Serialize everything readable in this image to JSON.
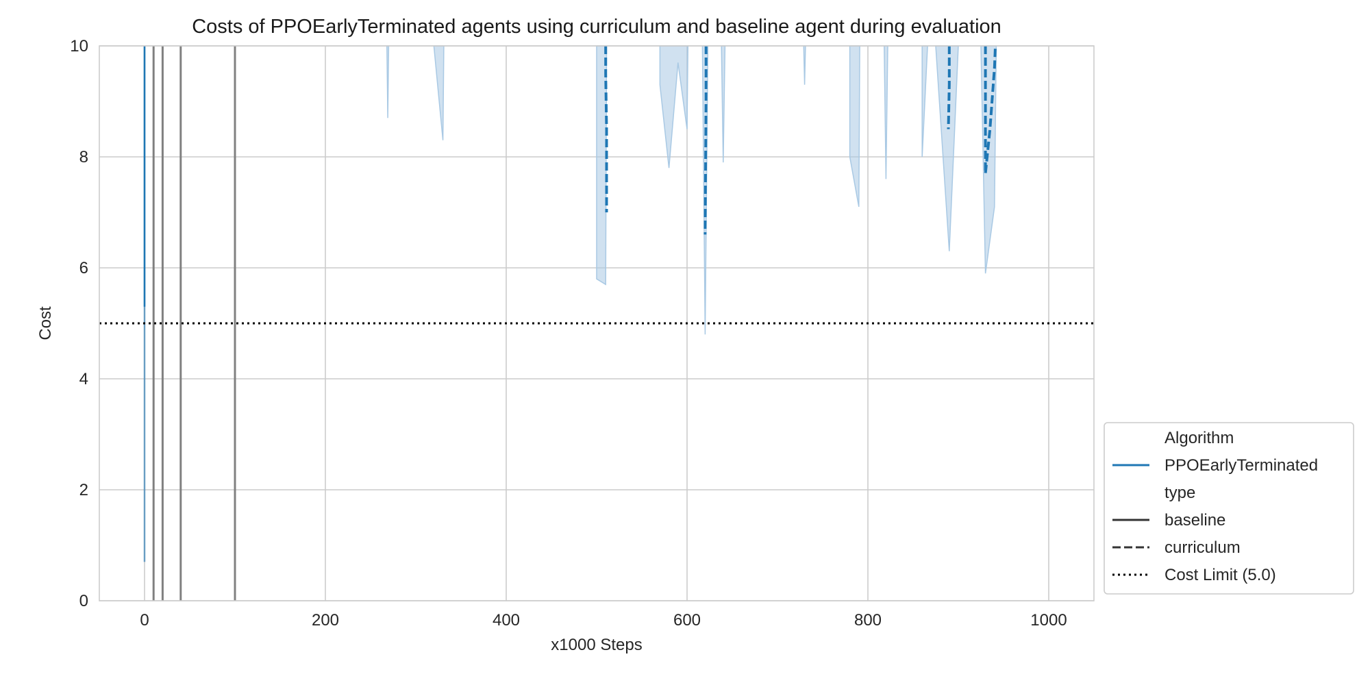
{
  "chart_data": {
    "type": "line",
    "title": "Costs of PPOEarlyTerminated agents using curriculum and baseline agent during evaluation",
    "xlabel": "x1000 Steps",
    "ylabel": "Cost",
    "xlim": [
      -50,
      1050
    ],
    "ylim": [
      0,
      10
    ],
    "x_ticks": [
      0,
      200,
      400,
      600,
      800,
      1000
    ],
    "y_ticks": [
      0,
      2,
      4,
      6,
      8,
      10
    ],
    "grid": true,
    "legend_position": "right, lower",
    "colors": {
      "ppo": "#1f77b4",
      "ppo_band": "#a9c9e4",
      "baseline_gray": "#808080",
      "grid": "#cccccc",
      "axes_edge": "#cccccc",
      "cost_limit": "#000000"
    },
    "cost_limit": {
      "value": 5.0,
      "label": "Cost Limit (5.0)"
    },
    "series": [
      {
        "algorithm": "PPOEarlyTerminated",
        "type": "baseline",
        "spikes": [
          {
            "x": 0,
            "min": 0.7,
            "max": 10
          },
          {
            "x": 10,
            "min": 0,
            "max": 10
          },
          {
            "x": 20,
            "min": 0,
            "max": 10
          },
          {
            "x": 40,
            "min": 0,
            "max": 10
          },
          {
            "x": 100,
            "min": 0,
            "max": 10
          }
        ]
      },
      {
        "algorithm": "PPOEarlyTerminated",
        "type": "curriculum",
        "mean_segments": [
          [
            [
              510,
              10
            ],
            [
              510,
              9.5
            ],
            [
              511,
              8.5
            ],
            [
              511,
              7.0
            ]
          ],
          [
            [
              621,
              10
            ],
            [
              621,
              9.0
            ],
            [
              620,
              6.6
            ]
          ],
          [
            [
              890,
              10
            ],
            [
              890,
              9.3
            ],
            [
              889,
              8.5
            ]
          ],
          [
            [
              930,
              10
            ],
            [
              930,
              7.7
            ],
            [
              935,
              8.5
            ],
            [
              940,
              9.6
            ],
            [
              941,
              10
            ]
          ]
        ],
        "band": [
          [
            [
              268,
              10
            ],
            [
              269,
              8.7
            ],
            [
              270,
              10
            ]
          ],
          [
            [
              320,
              10
            ],
            [
              330,
              8.3
            ],
            [
              331,
              10
            ]
          ],
          [
            [
              500,
              10
            ],
            [
              500,
              5.8
            ],
            [
              510,
              5.7
            ],
            [
              511,
              10
            ]
          ],
          [
            [
              570,
              10
            ],
            [
              570,
              9.3
            ],
            [
              580,
              7.8
            ],
            [
              590,
              9.7
            ],
            [
              600,
              8.5
            ],
            [
              601,
              10
            ]
          ],
          [
            [
              617,
              10
            ],
            [
              620,
              4.8
            ],
            [
              623,
              10
            ]
          ],
          [
            [
              638,
              10
            ],
            [
              640,
              7.9
            ],
            [
              642,
              10
            ]
          ],
          [
            [
              729,
              10
            ],
            [
              730,
              9.3
            ],
            [
              731,
              10
            ]
          ],
          [
            [
              780,
              10
            ],
            [
              780,
              8.0
            ],
            [
              790,
              7.1
            ],
            [
              791,
              10
            ]
          ],
          [
            [
              818,
              10
            ],
            [
              820,
              7.6
            ],
            [
              822,
              10
            ]
          ],
          [
            [
              860,
              10
            ],
            [
              860,
              8.0
            ],
            [
              866,
              10
            ]
          ],
          [
            [
              875,
              10
            ],
            [
              890,
              6.3
            ],
            [
              900,
              10
            ]
          ],
          [
            [
              925,
              10
            ],
            [
              930,
              5.9
            ],
            [
              940,
              7.1
            ],
            [
              942,
              10
            ]
          ]
        ]
      }
    ],
    "legend": {
      "sections": [
        {
          "kind": "header",
          "label": "Algorithm"
        },
        {
          "kind": "entry",
          "label": "PPOEarlyTerminated",
          "style": "solid",
          "color": "#1f77b4"
        },
        {
          "kind": "header",
          "label": "type"
        },
        {
          "kind": "entry",
          "label": "baseline",
          "style": "solid",
          "color": "#333333"
        },
        {
          "kind": "entry",
          "label": "curriculum",
          "style": "dashed",
          "color": "#333333"
        },
        {
          "kind": "entry",
          "label": "Cost Limit (5.0)",
          "style": "dotted",
          "color": "#000000"
        }
      ]
    }
  }
}
